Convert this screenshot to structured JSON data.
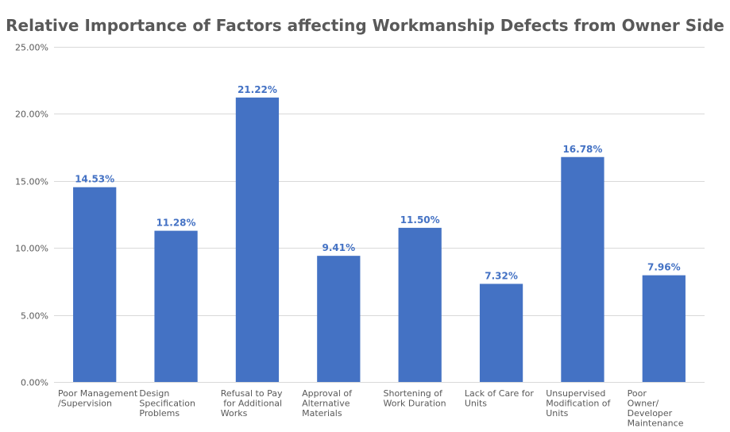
{
  "chart_data": {
    "type": "bar",
    "title": "Relative Importance of Factors affecting Workmanship Defects from Owner Side",
    "xlabel": "",
    "ylabel": "",
    "categories": [
      [
        "Poor Management",
        "/Supervision"
      ],
      [
        "Design",
        "Specification",
        "Problems"
      ],
      [
        "Refusal to Pay",
        " for Additional",
        "Works"
      ],
      [
        "Approval of",
        "Alternative",
        "Materials"
      ],
      [
        "Shortening of",
        "Work Duration"
      ],
      [
        "Lack of Care for",
        "Units"
      ],
      [
        "Unsupervised",
        "Modification of",
        "Units"
      ],
      [
        "Poor",
        "Owner/",
        "Developer",
        "Maintenance"
      ]
    ],
    "values": [
      14.53,
      11.28,
      21.22,
      9.41,
      11.5,
      7.32,
      16.78,
      7.96
    ],
    "data_labels": [
      "14.53%",
      "11.28%",
      "21.22%",
      "9.41%",
      "11.50%",
      "7.32%",
      "16.78%",
      "7.96%"
    ],
    "ylim": [
      0,
      25
    ],
    "yticks": [
      0,
      5,
      10,
      15,
      20,
      25
    ],
    "ytick_labels": [
      "0.00%",
      "5.00%",
      "10.00%",
      "15.00%",
      "20.00%",
      "25.00%"
    ],
    "grid": true,
    "legend": false,
    "colors": {
      "bar": "#4472C4",
      "grid": "#D9D9D9",
      "text": "#595959",
      "data_label": "#4472C4"
    }
  }
}
